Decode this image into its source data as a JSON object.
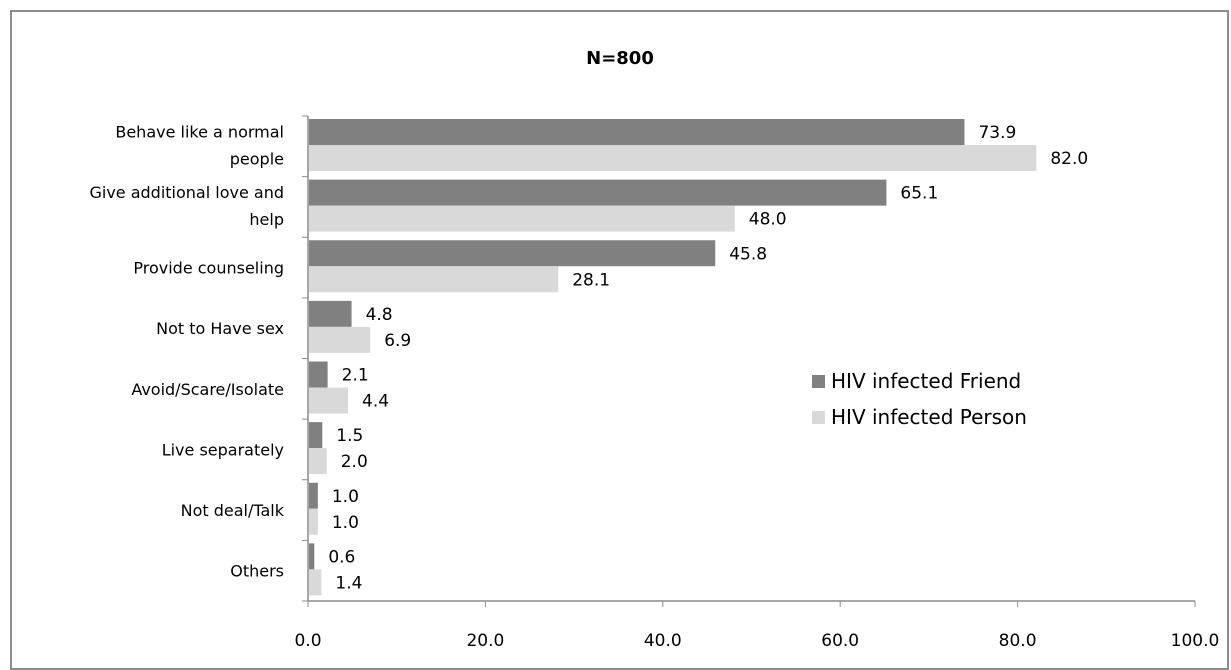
{
  "chart_data": {
    "type": "bar",
    "orientation": "horizontal",
    "title": "N=800",
    "categories": [
      "Behave like a normal people",
      "Give additional love and help",
      "Provide counseling",
      "Not to Have sex",
      "Avoid/Scare/Isolate",
      "Live separately",
      "Not deal/Talk",
      "Others"
    ],
    "category_lines": [
      [
        "Behave like a normal",
        "people"
      ],
      [
        "Give additional love and",
        "help"
      ],
      [
        "Provide counseling"
      ],
      [
        "Not to Have sex"
      ],
      [
        "Avoid/Scare/Isolate"
      ],
      [
        "Live separately"
      ],
      [
        "Not deal/Talk"
      ],
      [
        "Others"
      ]
    ],
    "series": [
      {
        "name": "HIV infected Friend",
        "color": "#808080",
        "values": [
          73.9,
          65.1,
          45.8,
          4.8,
          2.1,
          1.5,
          1.0,
          0.6
        ],
        "labels": [
          "73.9",
          "65.1",
          "45.8",
          "4.8",
          "2.1",
          "1.5",
          "1.0",
          "0.6"
        ]
      },
      {
        "name": "HIV infected Person",
        "color": "#d9d9d9",
        "values": [
          82.0,
          48.0,
          28.1,
          6.9,
          4.4,
          2.0,
          1.0,
          1.4
        ],
        "labels": [
          "82.0",
          "48.0",
          "28.1",
          "6.9",
          "4.4",
          "2.0",
          "1.0",
          "1.4"
        ]
      }
    ],
    "xlim": [
      0,
      100
    ],
    "xticks": [
      "0.0",
      "20.0",
      "40.0",
      "60.0",
      "80.0",
      "100.0"
    ],
    "grid": false,
    "legend_position": "right"
  }
}
